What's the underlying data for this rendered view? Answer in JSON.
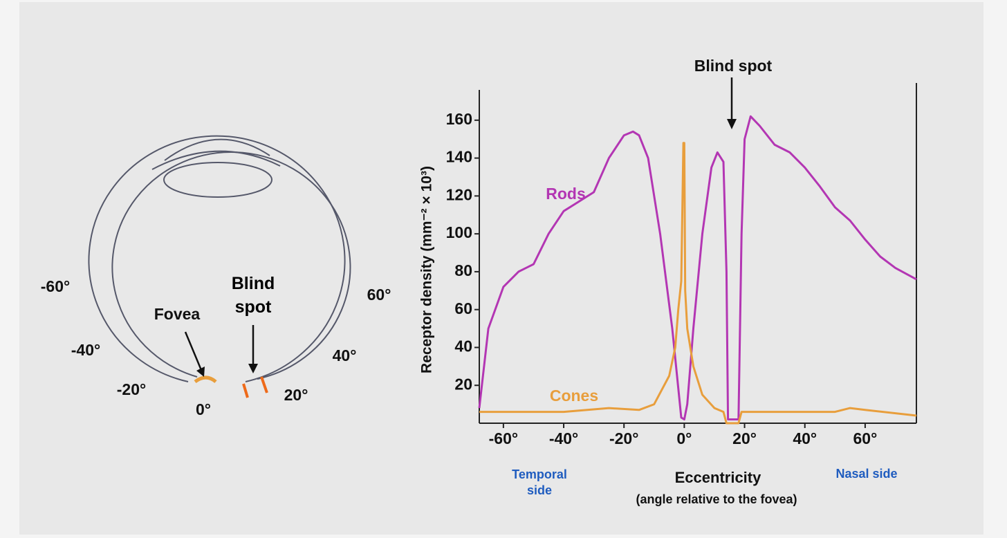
{
  "chart_data": {
    "type": "line",
    "ylabel": "Receptor density (mm⁻² × 10³)",
    "xlabel": "Eccentricity",
    "xlabel_note": "(angle relative to the fovea)",
    "annotation": "Blind spot",
    "left_side_label": "Temporal side",
    "right_side_label": "Nasal side",
    "xlim": [
      -68,
      77
    ],
    "ylim": [
      0,
      176
    ],
    "xticks": [
      {
        "value": -60,
        "label": "-60°"
      },
      {
        "value": -40,
        "label": "-40°"
      },
      {
        "value": -20,
        "label": "-20°"
      },
      {
        "value": 0,
        "label": "0°"
      },
      {
        "value": 20,
        "label": "20°"
      },
      {
        "value": 40,
        "label": "40°"
      },
      {
        "value": 60,
        "label": "60°"
      }
    ],
    "yticks": [
      20,
      40,
      60,
      80,
      100,
      120,
      140,
      160
    ],
    "series": [
      {
        "name": "Rods",
        "color": "#b336b3",
        "x": [
          -68,
          -65,
          -60,
          -55,
          -50,
          -45,
          -40,
          -35,
          -30,
          -25,
          -20,
          -17,
          -15,
          -12,
          -8,
          -4,
          -1,
          0,
          1,
          3,
          6,
          9,
          11,
          13,
          14,
          14.5,
          18,
          19,
          20,
          22,
          25,
          30,
          35,
          40,
          45,
          50,
          55,
          60,
          65,
          70,
          77
        ],
        "values": [
          8,
          50,
          72,
          80,
          84,
          100,
          112,
          117,
          122,
          140,
          152,
          154,
          152,
          140,
          100,
          50,
          3,
          2,
          10,
          50,
          100,
          135,
          143,
          138,
          80,
          2,
          2,
          100,
          150,
          162,
          157,
          147,
          143,
          135,
          125,
          114,
          107,
          97,
          88,
          82,
          76
        ]
      },
      {
        "name": "Cones",
        "color": "#e89e3c",
        "x": [
          -68,
          -40,
          -25,
          -15,
          -10,
          -5,
          -3,
          -2,
          -1,
          -0.3,
          0,
          0.3,
          1,
          3,
          6,
          10,
          13,
          14,
          18,
          19,
          30,
          50,
          55,
          60,
          77
        ],
        "values": [
          6,
          6,
          8,
          7,
          10,
          25,
          40,
          60,
          75,
          148,
          148,
          70,
          50,
          30,
          15,
          8,
          6,
          0,
          0,
          6,
          6,
          6,
          8,
          7,
          4
        ]
      }
    ]
  },
  "diagram": {
    "labels": [
      "-60°",
      "60°",
      "-40°",
      "40°",
      "-20°",
      "20°",
      "0°",
      "Fovea",
      "Blind spot"
    ]
  }
}
